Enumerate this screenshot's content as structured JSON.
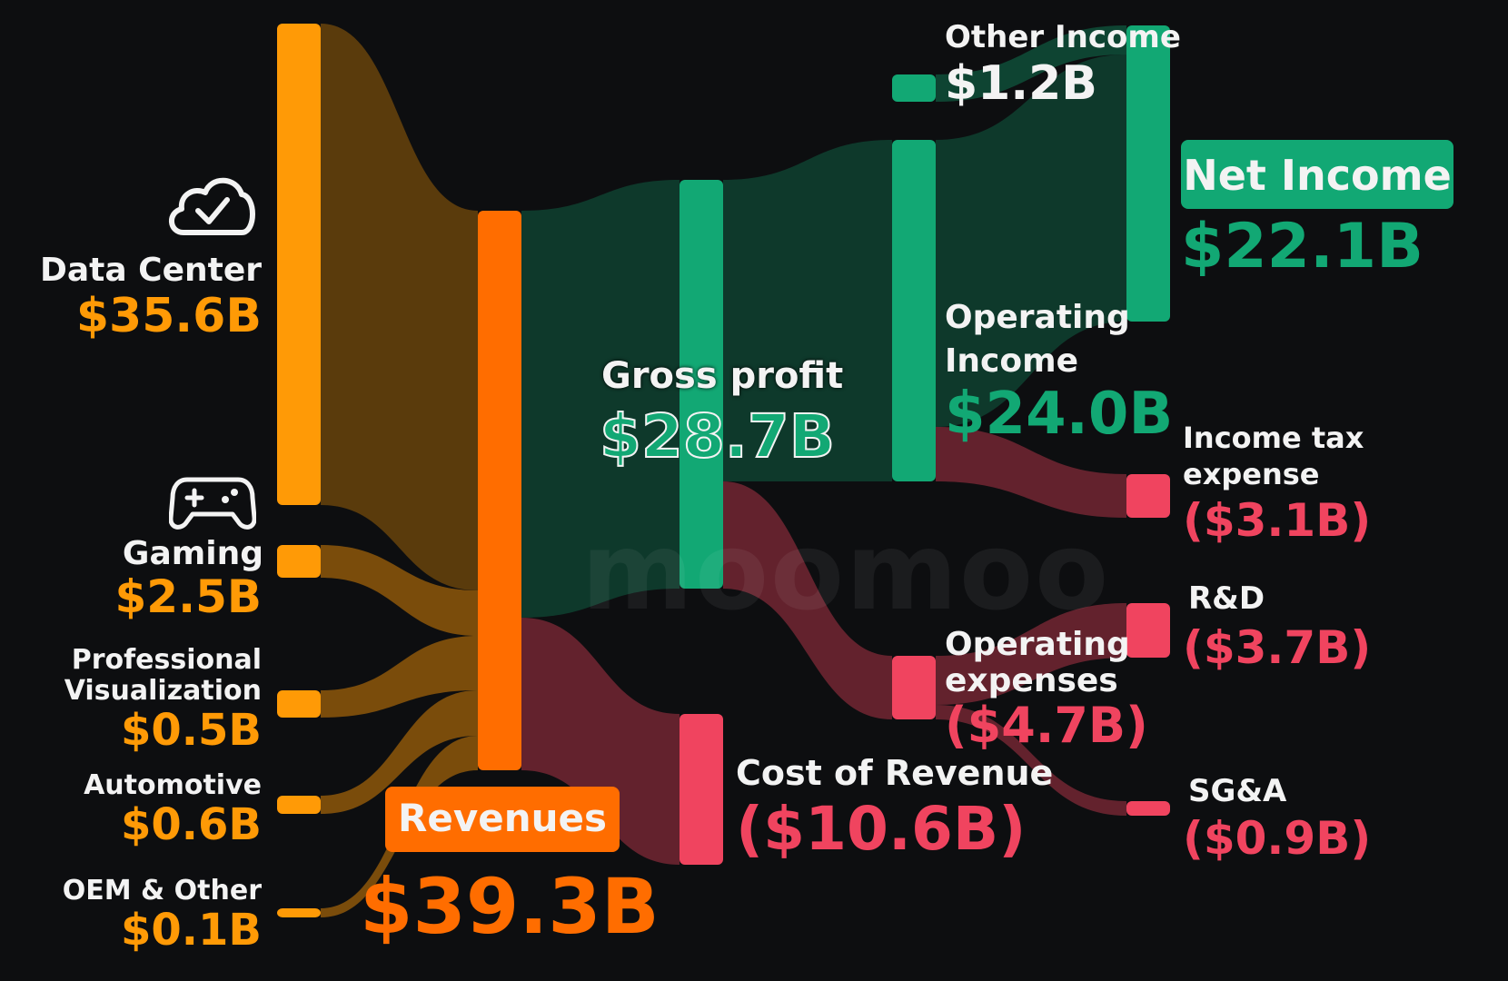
{
  "colors": {
    "orange": "#ff9a06",
    "revenue_orange": "#ff6d00",
    "green": "#12a874",
    "red": "#f0445f",
    "watermark": "rgba(255,255,255,0.06)"
  },
  "watermark": "moomoo",
  "icons": [
    "cloud-check-icon",
    "gamepad-icon"
  ],
  "nodes": {
    "data_center": {
      "label": "Data Center",
      "value": "$35.6B",
      "v": 35.6
    },
    "gaming": {
      "label": "Gaming",
      "value": "$2.5B",
      "v": 2.5
    },
    "pro_viz": {
      "label1": "Professional",
      "label2": "Visualization",
      "value": "$0.5B",
      "v": 0.5
    },
    "automotive": {
      "label": "Automotive",
      "value": "$0.6B",
      "v": 0.6
    },
    "oem": {
      "label": "OEM & Other",
      "value": "$0.1B",
      "v": 0.1
    },
    "revenues": {
      "label": "Revenues",
      "value": "$39.3B",
      "v": 39.3
    },
    "gross_profit": {
      "label": "Gross profit",
      "value": "$28.7B",
      "v": 28.7
    },
    "cost_of_revenue": {
      "label": "Cost of Revenue",
      "value": "($10.6B)",
      "v": 10.6
    },
    "operating_income": {
      "label1": "Operating",
      "label2": "Income",
      "value": "$24.0B",
      "v": 24.0
    },
    "operating_expenses": {
      "label1": "Operating",
      "label2": "expenses",
      "value": "($4.7B)",
      "v": 4.7
    },
    "other_income": {
      "label": "Other Income",
      "value": "$1.2B",
      "v": 1.2
    },
    "net_income": {
      "label": "Net Income",
      "value": "$22.1B",
      "v": 22.1
    },
    "income_tax": {
      "label1": "Income tax",
      "label2": "expense",
      "value": "($3.1B)",
      "v": 3.1
    },
    "rnd": {
      "label": "R&D",
      "value": "($3.7B)",
      "v": 3.7
    },
    "sga": {
      "label": "SG&A",
      "value": "($0.9B)",
      "v": 0.9
    }
  }
}
